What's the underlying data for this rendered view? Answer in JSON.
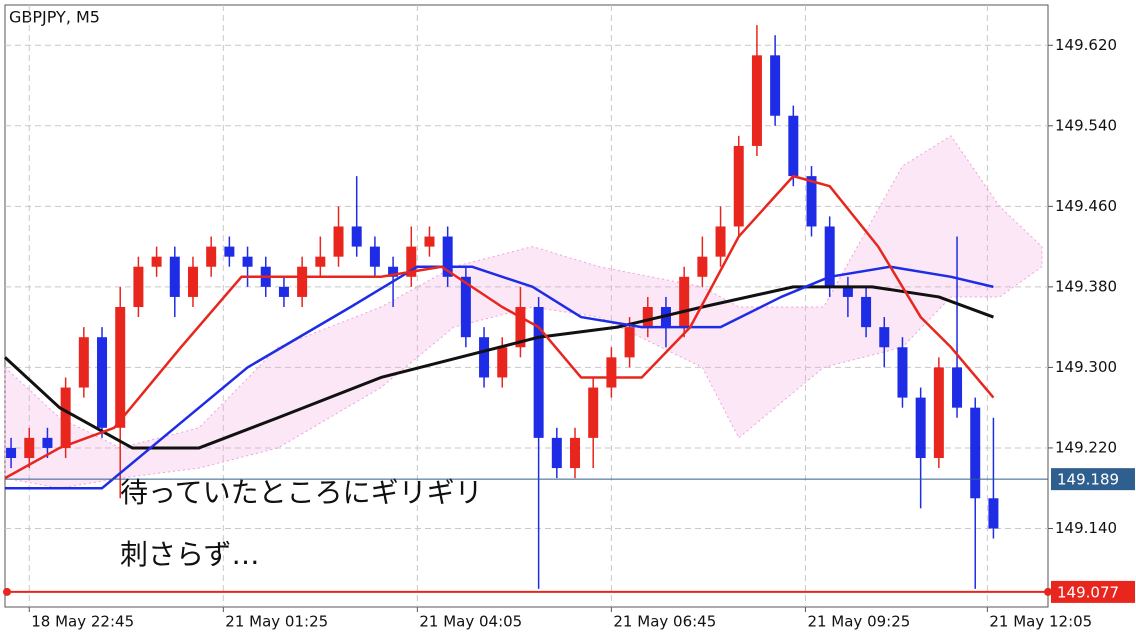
{
  "chart_data": {
    "type": "candlestick",
    "title": "GBPJPY, M5",
    "grid": true,
    "up_color": "#e8261e",
    "down_color": "#1f2ce6",
    "xlim": [
      0,
      172
    ],
    "xticks": [
      {
        "value": 4,
        "label": "18 May 22:45"
      },
      {
        "value": 36,
        "label": "21 May 01:25"
      },
      {
        "value": 68,
        "label": "21 May 04:05"
      },
      {
        "value": 100,
        "label": "21 May 06:45"
      },
      {
        "value": 132,
        "label": "21 May 09:25"
      },
      {
        "value": 162,
        "label": "21 May 12:05"
      }
    ],
    "ylim": [
      149.062,
      149.66
    ],
    "yticks": [
      {
        "value": 149.14,
        "label": "149.140"
      },
      {
        "value": 149.22,
        "label": "149.220"
      },
      {
        "value": 149.3,
        "label": "149.300"
      },
      {
        "value": 149.38,
        "label": "149.380"
      },
      {
        "value": 149.46,
        "label": "149.460"
      },
      {
        "value": 149.54,
        "label": "149.540"
      },
      {
        "value": 149.62,
        "label": "149.620"
      }
    ],
    "candles": {
      "x": [
        1,
        4,
        7,
        10,
        13,
        16,
        19,
        22,
        25,
        28,
        31,
        34,
        37,
        40,
        43,
        46,
        49,
        52,
        55,
        58,
        61,
        64,
        67,
        70,
        73,
        76,
        79,
        82,
        85,
        88,
        91,
        94,
        97,
        100,
        103,
        106,
        109,
        112,
        115,
        118,
        121,
        124,
        127,
        130,
        133,
        136,
        139,
        142,
        145,
        148,
        151,
        154,
        157,
        160,
        163
      ],
      "open": [
        149.22,
        149.21,
        149.23,
        149.22,
        149.28,
        149.33,
        149.24,
        149.36,
        149.4,
        149.41,
        149.37,
        149.4,
        149.42,
        149.41,
        149.4,
        149.38,
        149.37,
        149.4,
        149.41,
        149.44,
        149.42,
        149.4,
        149.39,
        149.42,
        149.43,
        149.39,
        149.33,
        149.29,
        149.32,
        149.36,
        149.23,
        149.2,
        149.23,
        149.28,
        149.31,
        149.34,
        149.36,
        149.34,
        149.39,
        149.41,
        149.44,
        149.52,
        149.61,
        149.55,
        149.49,
        149.44,
        149.38,
        149.37,
        149.34,
        149.32,
        149.27,
        149.21,
        149.3,
        149.26,
        149.17
      ],
      "high": [
        149.23,
        149.24,
        149.24,
        149.29,
        149.34,
        149.34,
        149.38,
        149.41,
        149.42,
        149.42,
        149.41,
        149.43,
        149.43,
        149.42,
        149.41,
        149.39,
        149.41,
        149.43,
        149.46,
        149.49,
        149.43,
        149.41,
        149.44,
        149.44,
        149.44,
        149.4,
        149.34,
        149.33,
        149.38,
        149.37,
        149.24,
        149.24,
        149.29,
        149.32,
        149.35,
        149.37,
        149.37,
        149.4,
        149.43,
        149.46,
        149.53,
        149.64,
        149.63,
        149.56,
        149.5,
        149.45,
        149.39,
        149.38,
        149.35,
        149.33,
        149.28,
        149.31,
        149.43,
        149.27,
        149.25
      ],
      "low": [
        149.2,
        149.2,
        149.21,
        149.21,
        149.27,
        149.23,
        149.17,
        149.35,
        149.39,
        149.35,
        149.36,
        149.39,
        149.4,
        149.38,
        149.37,
        149.36,
        149.36,
        149.39,
        149.4,
        149.41,
        149.39,
        149.36,
        149.38,
        149.41,
        149.38,
        149.32,
        149.28,
        149.28,
        149.31,
        149.08,
        149.19,
        149.19,
        149.2,
        149.27,
        149.3,
        149.33,
        149.32,
        149.33,
        149.38,
        149.4,
        149.43,
        149.51,
        149.54,
        149.48,
        149.43,
        149.37,
        149.35,
        149.33,
        149.3,
        149.26,
        149.16,
        149.2,
        149.25,
        149.08,
        149.13
      ],
      "close": [
        149.21,
        149.23,
        149.22,
        149.28,
        149.33,
        149.24,
        149.36,
        149.4,
        149.41,
        149.37,
        149.4,
        149.42,
        149.41,
        149.4,
        149.38,
        149.37,
        149.4,
        149.41,
        149.44,
        149.42,
        149.4,
        149.39,
        149.42,
        149.43,
        149.39,
        149.33,
        149.29,
        149.32,
        149.36,
        149.23,
        149.2,
        149.23,
        149.28,
        149.31,
        149.34,
        149.36,
        149.34,
        149.39,
        149.41,
        149.44,
        149.52,
        149.61,
        149.55,
        149.49,
        149.44,
        149.38,
        149.37,
        149.34,
        149.32,
        149.27,
        149.21,
        149.3,
        149.26,
        149.17,
        149.14
      ]
    },
    "cloud": {
      "color": "#f0a0dc",
      "x": [
        0,
        9,
        19,
        32,
        45,
        62,
        74,
        87,
        98,
        115,
        121,
        135,
        148,
        156,
        164,
        171
      ],
      "upper": [
        149.3,
        149.25,
        149.22,
        149.24,
        149.32,
        149.36,
        149.4,
        149.42,
        149.4,
        149.38,
        149.36,
        149.36,
        149.5,
        149.53,
        149.46,
        149.42
      ],
      "lower": [
        149.19,
        149.18,
        149.19,
        149.2,
        149.22,
        149.28,
        149.34,
        149.36,
        149.35,
        149.3,
        149.23,
        149.3,
        149.32,
        149.37,
        149.37,
        149.4
      ]
    },
    "lines": [
      {
        "color": "#111111",
        "width": 3,
        "x": [
          0,
          9,
          21,
          32,
          45,
          62,
          75,
          88,
          101,
          115,
          130,
          143,
          154,
          163
        ],
        "values": [
          149.31,
          149.26,
          149.22,
          149.22,
          149.25,
          149.29,
          149.31,
          149.33,
          149.34,
          149.36,
          149.38,
          149.38,
          149.37,
          149.35
        ]
      },
      {
        "color": "#1f2ce6",
        "width": 2.5,
        "x": [
          0,
          16,
          24,
          40,
          57,
          68,
          77,
          87,
          95,
          105,
          118,
          128,
          136,
          146,
          156,
          163
        ],
        "values": [
          149.18,
          149.18,
          149.22,
          149.3,
          149.36,
          149.4,
          149.4,
          149.38,
          149.35,
          149.34,
          149.34,
          149.37,
          149.39,
          149.4,
          149.39,
          149.38
        ]
      },
      {
        "color": "#e8261e",
        "width": 2.5,
        "x": [
          0,
          9,
          18,
          29,
          39,
          49,
          62,
          72,
          82,
          88,
          95,
          105,
          113,
          121,
          130,
          136,
          144,
          151,
          156,
          163
        ],
        "values": [
          149.19,
          149.22,
          149.24,
          149.32,
          149.39,
          149.39,
          149.39,
          149.4,
          149.36,
          149.34,
          149.29,
          149.29,
          149.34,
          149.43,
          149.49,
          149.48,
          149.42,
          149.35,
          149.32,
          149.27
        ]
      }
    ],
    "levels": [
      {
        "value": 149.189,
        "color": "#2f5f8f"
      },
      {
        "value": 149.077,
        "color": "#e8261e"
      }
    ],
    "annotations": [
      "待っていたところにギリギリ",
      "刺さらず…"
    ]
  }
}
